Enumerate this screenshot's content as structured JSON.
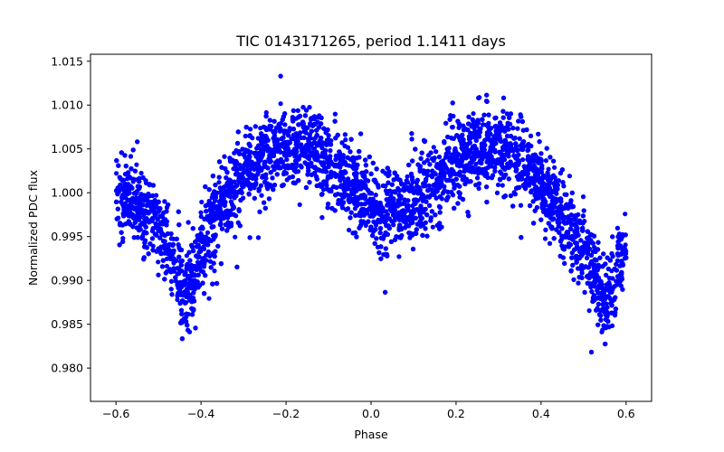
{
  "chart_data": {
    "type": "scatter",
    "title": "TIC 0143171265, period 1.1411 days",
    "xlabel": "Phase",
    "ylabel": "Normalized PDC flux",
    "xlim": [
      -0.66,
      0.66
    ],
    "ylim": [
      0.9762,
      1.0158
    ],
    "xticks": [
      -0.6,
      -0.4,
      -0.2,
      0.0,
      0.2,
      0.4,
      0.6
    ],
    "xtick_labels": [
      "−0.6",
      "−0.4",
      "−0.2",
      "0.0",
      "0.2",
      "0.4",
      "0.6"
    ],
    "yticks": [
      0.98,
      0.985,
      0.99,
      0.995,
      1.0,
      1.005,
      1.01,
      1.015
    ],
    "ytick_labels": [
      "0.980",
      "0.985",
      "0.990",
      "0.995",
      "1.000",
      "1.005",
      "1.010",
      "1.015"
    ],
    "grid": false,
    "marker_color": "#0000ff",
    "series": [
      {
        "name": "flux",
        "phase_range": [
          -0.6,
          0.6
        ],
        "curve_phase": [
          -0.6,
          -0.55,
          -0.5,
          -0.46,
          -0.44,
          -0.42,
          -0.38,
          -0.33,
          -0.28,
          -0.23,
          -0.18,
          -0.13,
          -0.08,
          -0.03,
          0.0,
          0.03,
          0.07,
          0.12,
          0.17,
          0.22,
          0.27,
          0.32,
          0.37,
          0.42,
          0.47,
          0.51,
          0.54,
          0.56,
          0.58,
          0.6
        ],
        "curve_flux": [
          1.0,
          0.9985,
          0.996,
          0.992,
          0.988,
          0.9905,
          0.996,
          1.0,
          1.003,
          1.005,
          1.0055,
          1.0045,
          1.0025,
          1.0,
          0.9985,
          0.9975,
          0.998,
          0.9995,
          1.0025,
          1.0045,
          1.0055,
          1.005,
          1.003,
          0.9995,
          0.996,
          0.9925,
          0.9885,
          0.9875,
          0.991,
          0.9935
        ],
        "scatter_sigma": 0.0022,
        "n_points": 7000
      }
    ]
  }
}
